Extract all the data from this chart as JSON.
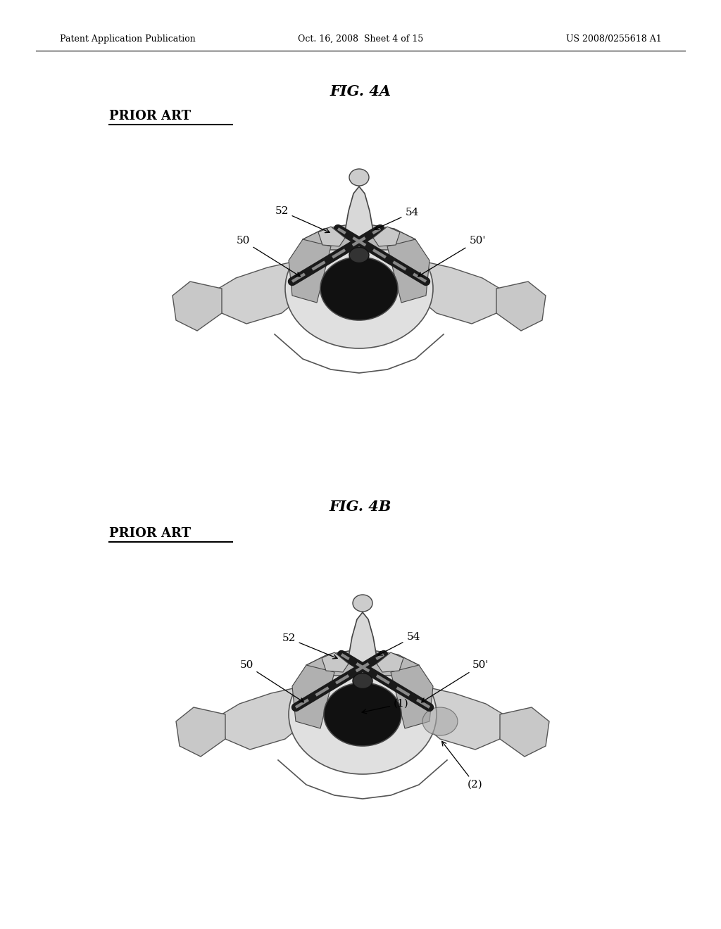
{
  "header_left": "Patent Application Publication",
  "header_center": "Oct. 16, 2008  Sheet 4 of 15",
  "header_right": "US 2008/0255618 A1",
  "fig4a_title": "FIG. 4A",
  "fig4b_title": "FIG. 4B",
  "prior_art_label": "PRIOR ART",
  "background_color": "#ffffff",
  "text_color": "#000000"
}
